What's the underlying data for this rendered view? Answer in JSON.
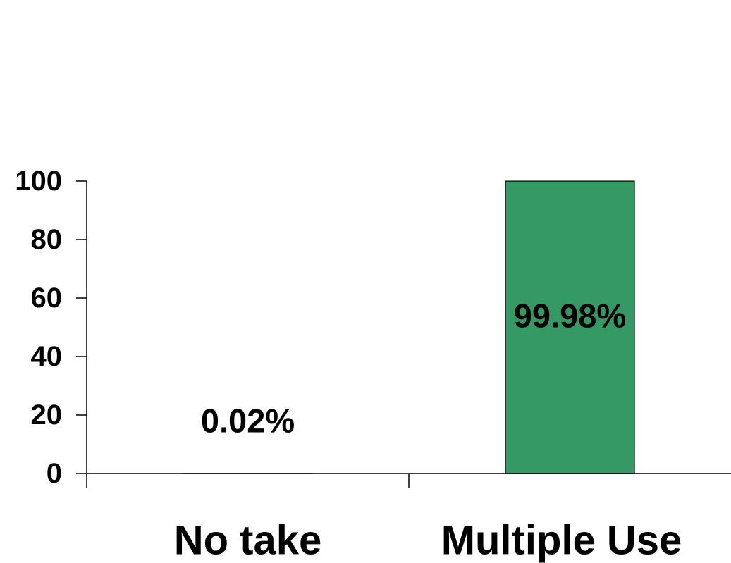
{
  "chart_data": {
    "type": "bar",
    "categories": [
      "No take",
      "Multiple Use"
    ],
    "values": [
      0.02,
      99.98
    ],
    "data_labels": [
      "0.02%",
      "99.98%"
    ],
    "yticks": [
      0,
      20,
      40,
      60,
      80,
      100
    ],
    "ylim": [
      0,
      100
    ],
    "title": "",
    "xlabel": "",
    "ylabel": "",
    "grid": false,
    "bar_color": "#359966"
  }
}
